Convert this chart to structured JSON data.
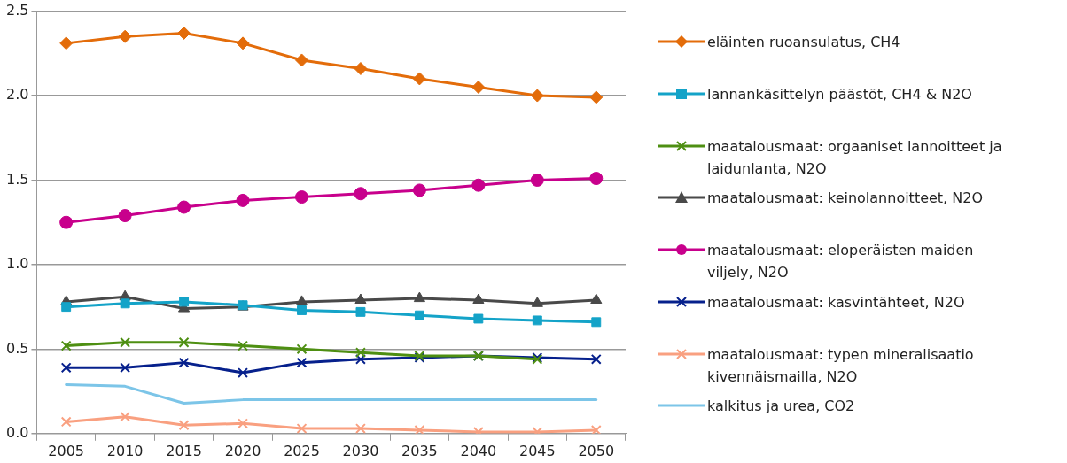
{
  "chart_data": {
    "type": "line",
    "categories": [
      "2005",
      "2010",
      "2015",
      "2020",
      "2025",
      "2030",
      "2035",
      "2040",
      "2045",
      "2050"
    ],
    "ylim": [
      0,
      2.5
    ],
    "yticks": [
      {
        "value": 0,
        "label": "0.0"
      },
      {
        "value": 0.5,
        "label": "0.5"
      },
      {
        "value": 1,
        "label": "1.0"
      },
      {
        "value": 1.5,
        "label": "1.5"
      },
      {
        "value": 2,
        "label": "2.0"
      },
      {
        "value": 2.5,
        "label": "2.5"
      }
    ],
    "grid": "y",
    "legend": "right",
    "series": [
      {
        "name": "eläinten ruoansulatus, CH4",
        "color": "#e36c0a",
        "marker": "diamond",
        "values": [
          2.31,
          2.35,
          2.37,
          2.31,
          2.21,
          2.16,
          2.1,
          2.05,
          2.0,
          1.99
        ]
      },
      {
        "name": "lannankäsittelyn päästöt, CH4 & N2O",
        "color": "#14a3c8",
        "marker": "square",
        "values": [
          0.75,
          0.77,
          0.78,
          0.76,
          0.73,
          0.72,
          0.7,
          0.68,
          0.67,
          0.66
        ]
      },
      {
        "name": "maatalousmaat: orgaaniset lannoitteet ja laidunlanta, N2O",
        "color": "#4e8f12",
        "marker": "cross",
        "values": [
          0.52,
          0.54,
          0.54,
          0.52,
          0.5,
          0.48,
          0.46,
          0.46,
          0.44,
          null
        ]
      },
      {
        "name": "maatalousmaat: keinolannoitteet, N2O",
        "color": "#494949",
        "marker": "triangle",
        "values": [
          0.78,
          0.81,
          0.74,
          0.75,
          0.78,
          0.79,
          0.8,
          0.79,
          0.77,
          0.79
        ]
      },
      {
        "name": "maatalousmaat: eloperäisten maiden viljely, N2O",
        "color": "#c8008c",
        "marker": "circle",
        "values": [
          1.25,
          1.29,
          1.34,
          1.38,
          1.4,
          1.42,
          1.44,
          1.47,
          1.5,
          1.51
        ]
      },
      {
        "name": "maatalousmaat: kasvintähteet, N2O",
        "color": "#06208c",
        "marker": "cross",
        "values": [
          0.39,
          0.39,
          0.42,
          0.36,
          0.42,
          0.44,
          0.45,
          0.46,
          0.45,
          0.44
        ]
      },
      {
        "name": "maatalousmaat: typen mineralisaatio kivennäismailla, N2O",
        "color": "#f9a080",
        "marker": "cross",
        "values": [
          0.07,
          0.1,
          0.05,
          0.06,
          0.03,
          0.03,
          0.02,
          0.01,
          0.01,
          0.02
        ]
      },
      {
        "name": "kalkitus ja urea, CO2",
        "color": "#7cc5e8",
        "marker": "none",
        "values": [
          0.29,
          0.28,
          0.18,
          0.2,
          0.2,
          0.2,
          0.2,
          0.2,
          0.2,
          0.2
        ]
      }
    ]
  }
}
